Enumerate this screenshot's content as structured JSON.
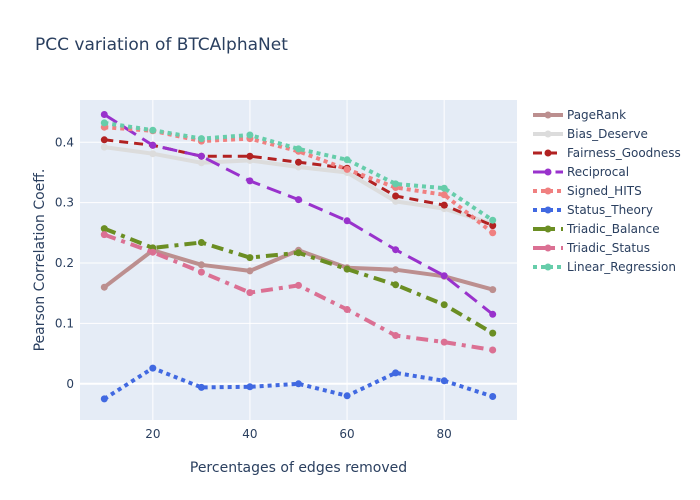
{
  "chart_data": {
    "type": "line",
    "title": "PCC variation of BTCAlphaNet",
    "xlabel": "Percentages of edges removed",
    "ylabel": "Pearson Correlation Coeff.",
    "xlim": [
      5,
      95
    ],
    "ylim": [
      -0.06,
      0.47
    ],
    "xticks": [
      20,
      40,
      60,
      80
    ],
    "xtick_labels": [
      "20",
      "40",
      "60",
      "80"
    ],
    "yticks": [
      0,
      0.1,
      0.2,
      0.3,
      0.4
    ],
    "ytick_labels": [
      "0",
      "0.1",
      "0.2",
      "0.3",
      "0.4"
    ],
    "x": [
      10,
      20,
      30,
      40,
      50,
      60,
      70,
      80,
      90
    ],
    "legend_position": "top-right outside",
    "series": [
      {
        "name": "PageRank",
        "color": "#bc8f8f",
        "dash": "solid",
        "width": 4,
        "marker": true,
        "values": [
          0.16,
          0.221,
          0.197,
          0.187,
          0.221,
          0.192,
          0.189,
          0.178,
          0.156
        ]
      },
      {
        "name": "Bias_Deserve",
        "color": "#dcdcdc",
        "dash": "solid",
        "width": 4,
        "marker": true,
        "values": [
          0.392,
          0.381,
          0.366,
          0.37,
          0.359,
          0.35,
          0.302,
          0.29,
          0.265
        ]
      },
      {
        "name": "Fairness_Goodness",
        "color": "#b22222",
        "dash": "dash",
        "width": 3,
        "marker": true,
        "values": [
          0.404,
          0.395,
          0.377,
          0.377,
          0.367,
          0.357,
          0.311,
          0.296,
          0.262
        ]
      },
      {
        "name": "Reciprocal",
        "color": "#9932cc",
        "dash": "longdash",
        "width": 3,
        "marker": true,
        "values": [
          0.446,
          0.395,
          0.377,
          0.336,
          0.305,
          0.27,
          0.222,
          0.179,
          0.115
        ]
      },
      {
        "name": "Signed_HITS",
        "color": "#f08080",
        "dash": "dot",
        "width": 4,
        "marker": true,
        "values": [
          0.425,
          0.419,
          0.402,
          0.406,
          0.385,
          0.355,
          0.325,
          0.313,
          0.25
        ]
      },
      {
        "name": "Status_Theory",
        "color": "#4169e1",
        "dash": "dot",
        "width": 4,
        "marker": true,
        "values": [
          -0.025,
          0.026,
          -0.006,
          -0.005,
          0.0,
          -0.02,
          0.018,
          0.005,
          -0.021
        ]
      },
      {
        "name": "Triadic_Balance",
        "color": "#6b8e23",
        "dash": "dashdot",
        "width": 4,
        "marker": true,
        "values": [
          0.257,
          0.225,
          0.234,
          0.209,
          0.217,
          0.19,
          0.164,
          0.131,
          0.084
        ]
      },
      {
        "name": "Triadic_Status",
        "color": "#db7093",
        "dash": "dashdot",
        "width": 4,
        "marker": true,
        "values": [
          0.247,
          0.218,
          0.185,
          0.151,
          0.163,
          0.123,
          0.08,
          0.069,
          0.056
        ]
      },
      {
        "name": "Linear_Regression",
        "color": "#66cdaa",
        "dash": "dot",
        "width": 4,
        "marker": true,
        "values": [
          0.432,
          0.42,
          0.406,
          0.412,
          0.389,
          0.371,
          0.331,
          0.324,
          0.271
        ]
      }
    ]
  }
}
